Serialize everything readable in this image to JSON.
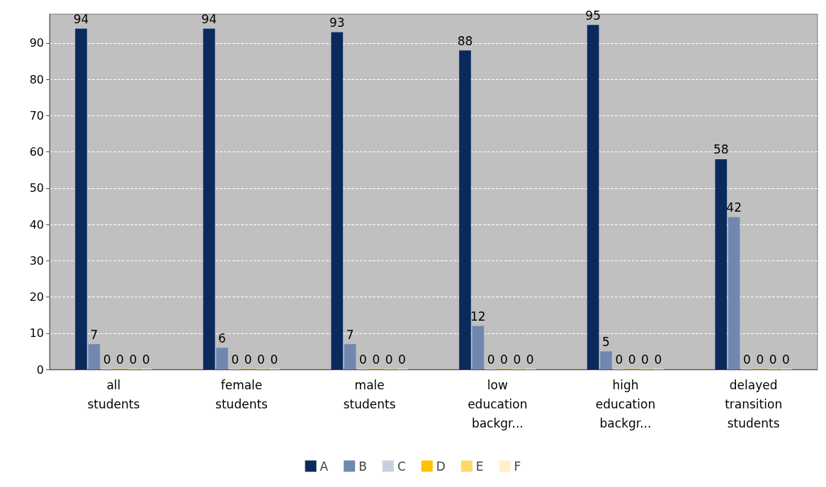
{
  "chart_data": {
    "type": "bar",
    "categories": [
      "all\nstudents",
      "female\nstudents",
      "male\nstudents",
      "low\neducation\nbackgr...",
      "high\neducation\nbackgr...",
      "delayed\ntransition\nstudents"
    ],
    "series": [
      {
        "name": "A",
        "color": "#0a2a5e",
        "values": [
          94,
          94,
          93,
          88,
          95,
          58
        ]
      },
      {
        "name": "B",
        "color": "#7088b0",
        "values": [
          7,
          6,
          7,
          12,
          5,
          42
        ]
      },
      {
        "name": "C",
        "color": "#c8d0dc",
        "values": [
          0,
          0,
          0,
          0,
          0,
          0
        ]
      },
      {
        "name": "D",
        "color": "#ffc000",
        "values": [
          0,
          0,
          0,
          0,
          0,
          0
        ]
      },
      {
        "name": "E",
        "color": "#ffd966",
        "values": [
          0,
          0,
          0,
          0,
          0,
          0
        ]
      },
      {
        "name": "F",
        "color": "#fff0c8",
        "values": [
          0,
          0,
          0,
          0,
          0,
          0
        ]
      }
    ],
    "ylim": [
      0,
      98
    ],
    "yticks": [
      0,
      10,
      20,
      30,
      40,
      50,
      60,
      70,
      80,
      90
    ],
    "grid": "y",
    "legend": "bottom",
    "data_labels": true
  }
}
